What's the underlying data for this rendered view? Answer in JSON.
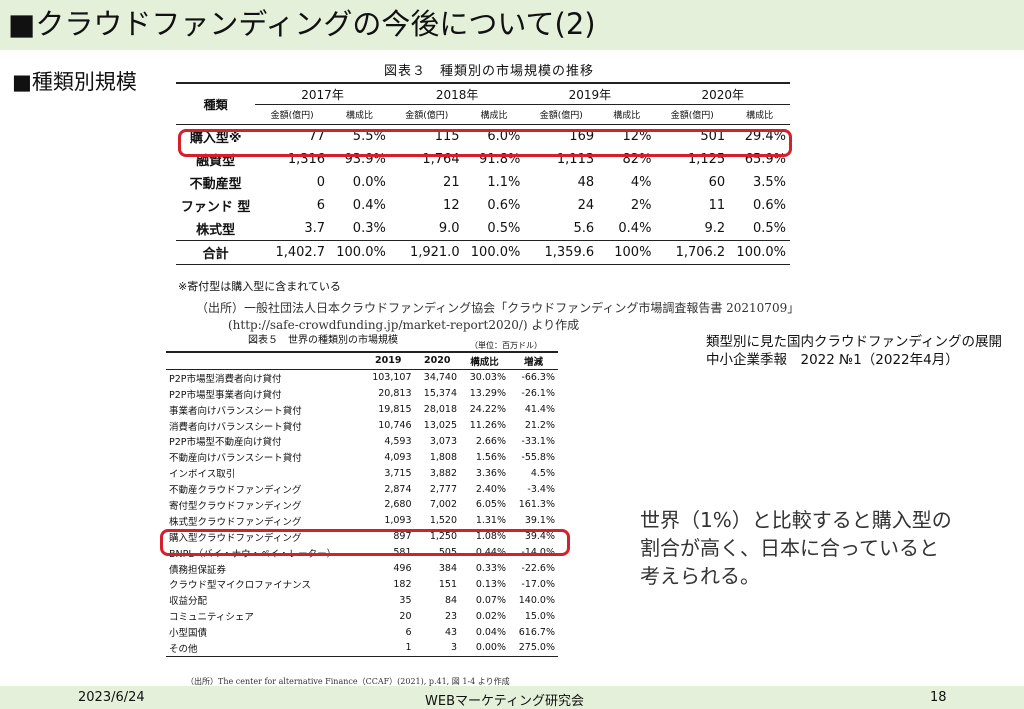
{
  "title": "■クラウドファンディングの今後について(2)",
  "subhead": "■種類別規模",
  "table1": {
    "caption": "図表３　種類別の市場規模の推移",
    "corner": "種類",
    "years": [
      "2017年",
      "2018年",
      "2019年",
      "2020年"
    ],
    "sub_amount": "金額(億円)",
    "sub_ratio": "構成比",
    "rows": [
      {
        "label": "購入型※",
        "c": [
          "77",
          "5.5%",
          "115",
          "6.0%",
          "169",
          "12%",
          "501",
          "29.4%"
        ]
      },
      {
        "label": "融資型",
        "c": [
          "1,316",
          "93.9%",
          "1,764",
          "91.8%",
          "1,113",
          "82%",
          "1,125",
          "65.9%"
        ]
      },
      {
        "label": "不動産型",
        "c": [
          "0",
          "0.0%",
          "21",
          "1.1%",
          "48",
          "4%",
          "60",
          "3.5%"
        ]
      },
      {
        "label": "ファンド 型",
        "c": [
          "6",
          "0.4%",
          "12",
          "0.6%",
          "24",
          "2%",
          "11",
          "0.6%"
        ]
      },
      {
        "label": "株式型",
        "c": [
          "3.7",
          "0.3%",
          "9.0",
          "0.5%",
          "5.6",
          "0.4%",
          "9.2",
          "0.5%"
        ]
      },
      {
        "label": "合計",
        "c": [
          "1,402.7",
          "100.0%",
          "1,921.0",
          "100.0%",
          "1,359.6",
          "100%",
          "1,706.2",
          "100.0%"
        ]
      }
    ],
    "note": "※寄付型は購入型に含まれている",
    "source_line1": "（出所）一般社団法人日本クラウドファンディング協会「クラウドファンディング市場調査報告書 20210709」",
    "source_line2": "(http://safe-crowdfunding.jp/market-report2020/) より作成"
  },
  "table2": {
    "caption": "図表５　世界の種類別の市場規模",
    "unit": "（単位：百万ドル）",
    "headers": [
      "",
      "2019",
      "2020",
      "構成比",
      "増減"
    ],
    "rows": [
      [
        "P2P市場型消費者向け貸付",
        "103,107",
        "34,740",
        "30.03%",
        "-66.3%"
      ],
      [
        "P2P市場型事業者向け貸付",
        "20,813",
        "15,374",
        "13.29%",
        "-26.1%"
      ],
      [
        "事業者向けバランスシート貸付",
        "19,815",
        "28,018",
        "24.22%",
        "41.4%"
      ],
      [
        "消費者向けバランスシート貸付",
        "10,746",
        "13,025",
        "11.26%",
        "21.2%"
      ],
      [
        "P2P市場型不動産向け貸付",
        "4,593",
        "3,073",
        "2.66%",
        "-33.1%"
      ],
      [
        "不動産向けバランスシート貸付",
        "4,093",
        "1,808",
        "1.56%",
        "-55.8%"
      ],
      [
        "インボイス取引",
        "3,715",
        "3,882",
        "3.36%",
        "4.5%"
      ],
      [
        "不動産クラウドファンディング",
        "2,874",
        "2,777",
        "2.40%",
        "-3.4%"
      ],
      [
        "寄付型クラウドファンディング",
        "2,680",
        "7,002",
        "6.05%",
        "161.3%"
      ],
      [
        "株式型クラウドファンディング",
        "1,093",
        "1,520",
        "1.31%",
        "39.1%"
      ],
      [
        "購入型クラウドファンディング",
        "897",
        "1,250",
        "1.08%",
        "39.4%"
      ],
      [
        "BNPL（バイ・ナウ・ペイ・レーター）",
        "581",
        "505",
        "0.44%",
        "-14.0%"
      ],
      [
        "債務担保証券",
        "496",
        "384",
        "0.33%",
        "-22.6%"
      ],
      [
        "クラウド型マイクロファイナンス",
        "182",
        "151",
        "0.13%",
        "-17.0%"
      ],
      [
        "収益分配",
        "35",
        "84",
        "0.07%",
        "140.0%"
      ],
      [
        "コミュニティシェア",
        "20",
        "23",
        "0.02%",
        "15.0%"
      ],
      [
        "小型国債",
        "6",
        "43",
        "0.04%",
        "616.7%"
      ],
      [
        "その他",
        "1",
        "3",
        "0.00%",
        "275.0%"
      ]
    ],
    "source": "（出所）The center for alternative Finance（CCAF）(2021), p.41, 図 1-4 より作成"
  },
  "reference_line1": "類型別に見た国内クラウドファンディングの展開",
  "reference_line2": "中小企業季報　2022 №1（2022年4月）",
  "comment_line1": "世界（1%）と比較すると購入型の",
  "comment_line2": "割合が高く、日本に合っていると",
  "comment_line3": "考えられる。",
  "footer": {
    "date": "2023/6/24",
    "center": "WEBマーケティング研究会",
    "page": "18"
  },
  "colors": {
    "header_band": "#e4f0da",
    "highlight": "#d61f2c"
  }
}
